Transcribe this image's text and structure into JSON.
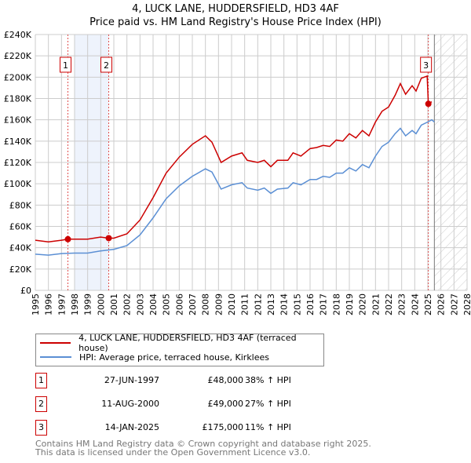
{
  "chart_data": {
    "type": "line",
    "title": "4, LUCK LANE, HUDDERSFIELD, HD3 4AF",
    "subtitle": "Price paid vs. HM Land Registry's House Price Index (HPI)",
    "xlim": [
      1995,
      2028
    ],
    "ylim": [
      0,
      240000
    ],
    "x_ticks": [
      "1995",
      "1996",
      "1997",
      "1998",
      "1999",
      "2000",
      "2001",
      "2002",
      "2003",
      "2004",
      "2005",
      "2006",
      "2007",
      "2008",
      "2009",
      "2010",
      "2011",
      "2012",
      "2013",
      "2014",
      "2015",
      "2016",
      "2017",
      "2018",
      "2019",
      "2020",
      "2021",
      "2022",
      "2023",
      "2024",
      "2025",
      "2026",
      "2027",
      "2028"
    ],
    "y_ticks": [
      {
        "v": 0,
        "l": "£0"
      },
      {
        "v": 20000,
        "l": "£20K"
      },
      {
        "v": 40000,
        "l": "£40K"
      },
      {
        "v": 60000,
        "l": "£60K"
      },
      {
        "v": 80000,
        "l": "£80K"
      },
      {
        "v": 100000,
        "l": "£100K"
      },
      {
        "v": 120000,
        "l": "£120K"
      },
      {
        "v": 140000,
        "l": "£140K"
      },
      {
        "v": 160000,
        "l": "£160K"
      },
      {
        "v": 180000,
        "l": "£180K"
      },
      {
        "v": 200000,
        "l": "£200K"
      },
      {
        "v": 220000,
        "l": "£220K"
      },
      {
        "v": 240000,
        "l": "£240K"
      }
    ],
    "grid": true,
    "shaded_range": [
      1998,
      2000.6
    ],
    "forecast_from": 2025.5,
    "series": [
      {
        "name": "4, LUCK LANE, HUDDERSFIELD, HD3 4AF (terraced house)",
        "color": "#cc0000",
        "x": [
          1995,
          1996,
          1997,
          1997.5,
          1998,
          1999,
          2000,
          2000.6,
          2001,
          2002,
          2003,
          2004,
          2005,
          2006,
          2007,
          2008,
          2008.5,
          2009.2,
          2010,
          2010.8,
          2011.2,
          2012,
          2012.5,
          2013,
          2013.5,
          2014.3,
          2014.7,
          2015.3,
          2016,
          2016.5,
          2017,
          2017.5,
          2018,
          2018.5,
          2019,
          2019.5,
          2020,
          2020.5,
          2021,
          2021.5,
          2022,
          2022.5,
          2022.9,
          2023.3,
          2023.8,
          2024.1,
          2024.5,
          2024.95,
          2025.04,
          2025.3
        ],
        "y": [
          47000,
          45500,
          47000,
          48000,
          48000,
          48000,
          50000,
          49000,
          49000,
          53000,
          66000,
          87000,
          110000,
          125000,
          137000,
          145000,
          139000,
          120000,
          126000,
          129000,
          122000,
          120000,
          122000,
          116000,
          122000,
          122000,
          129000,
          126000,
          133000,
          134000,
          136000,
          135000,
          141000,
          140000,
          147000,
          143000,
          150000,
          145000,
          158000,
          168000,
          172000,
          183000,
          194000,
          184000,
          192000,
          187000,
          199000,
          201000,
          175000,
          177000
        ]
      },
      {
        "name": "HPI: Average price, terraced house, Kirklees",
        "color": "#5b8fd4",
        "x": [
          1995,
          1996,
          1997,
          1998,
          1999,
          2000,
          2001,
          2002,
          2003,
          2004,
          2005,
          2006,
          2007,
          2008,
          2008.5,
          2009.2,
          2010,
          2010.8,
          2011.2,
          2012,
          2012.5,
          2013,
          2013.5,
          2014.3,
          2014.7,
          2015.3,
          2016,
          2016.5,
          2017,
          2017.5,
          2018,
          2018.5,
          2019,
          2019.5,
          2020,
          2020.5,
          2021,
          2021.5,
          2022,
          2022.5,
          2022.9,
          2023.3,
          2023.8,
          2024.1,
          2024.5,
          2025,
          2025.3,
          2025.5
        ],
        "y": [
          34000,
          33000,
          34500,
          35000,
          35000,
          37000,
          38500,
          42000,
          52000,
          68000,
          86000,
          98000,
          107000,
          114000,
          111000,
          95000,
          99000,
          101000,
          96000,
          94000,
          96000,
          91000,
          95000,
          96000,
          101000,
          99000,
          104000,
          104000,
          107000,
          106000,
          110000,
          110000,
          115000,
          112000,
          118000,
          115000,
          126000,
          135000,
          139000,
          147000,
          152000,
          145000,
          150000,
          147000,
          155000,
          158000,
          160000,
          158000
        ]
      }
    ],
    "sales": [
      {
        "label": "1",
        "x": 1997.49,
        "y": 48000,
        "date": "27-JUN-1997",
        "price": "£48,000",
        "hpi": "38% ↑ HPI"
      },
      {
        "label": "2",
        "x": 2000.61,
        "y": 49000,
        "date": "11-AUG-2000",
        "price": "£49,000",
        "hpi": "27% ↑ HPI"
      },
      {
        "label": "3",
        "x": 2025.04,
        "y": 175000,
        "date": "14-JAN-2025",
        "price": "£175,000",
        "hpi": "11% ↑ HPI"
      }
    ]
  },
  "legend": {
    "red": "4, LUCK LANE, HUDDERSFIELD, HD3 4AF (terraced house)",
    "blue": "HPI: Average price, terraced house, Kirklees"
  },
  "footer": {
    "line1": "Contains HM Land Registry data © Crown copyright and database right 2025.",
    "line2": "This data is licensed under the Open Government Licence v3.0."
  }
}
